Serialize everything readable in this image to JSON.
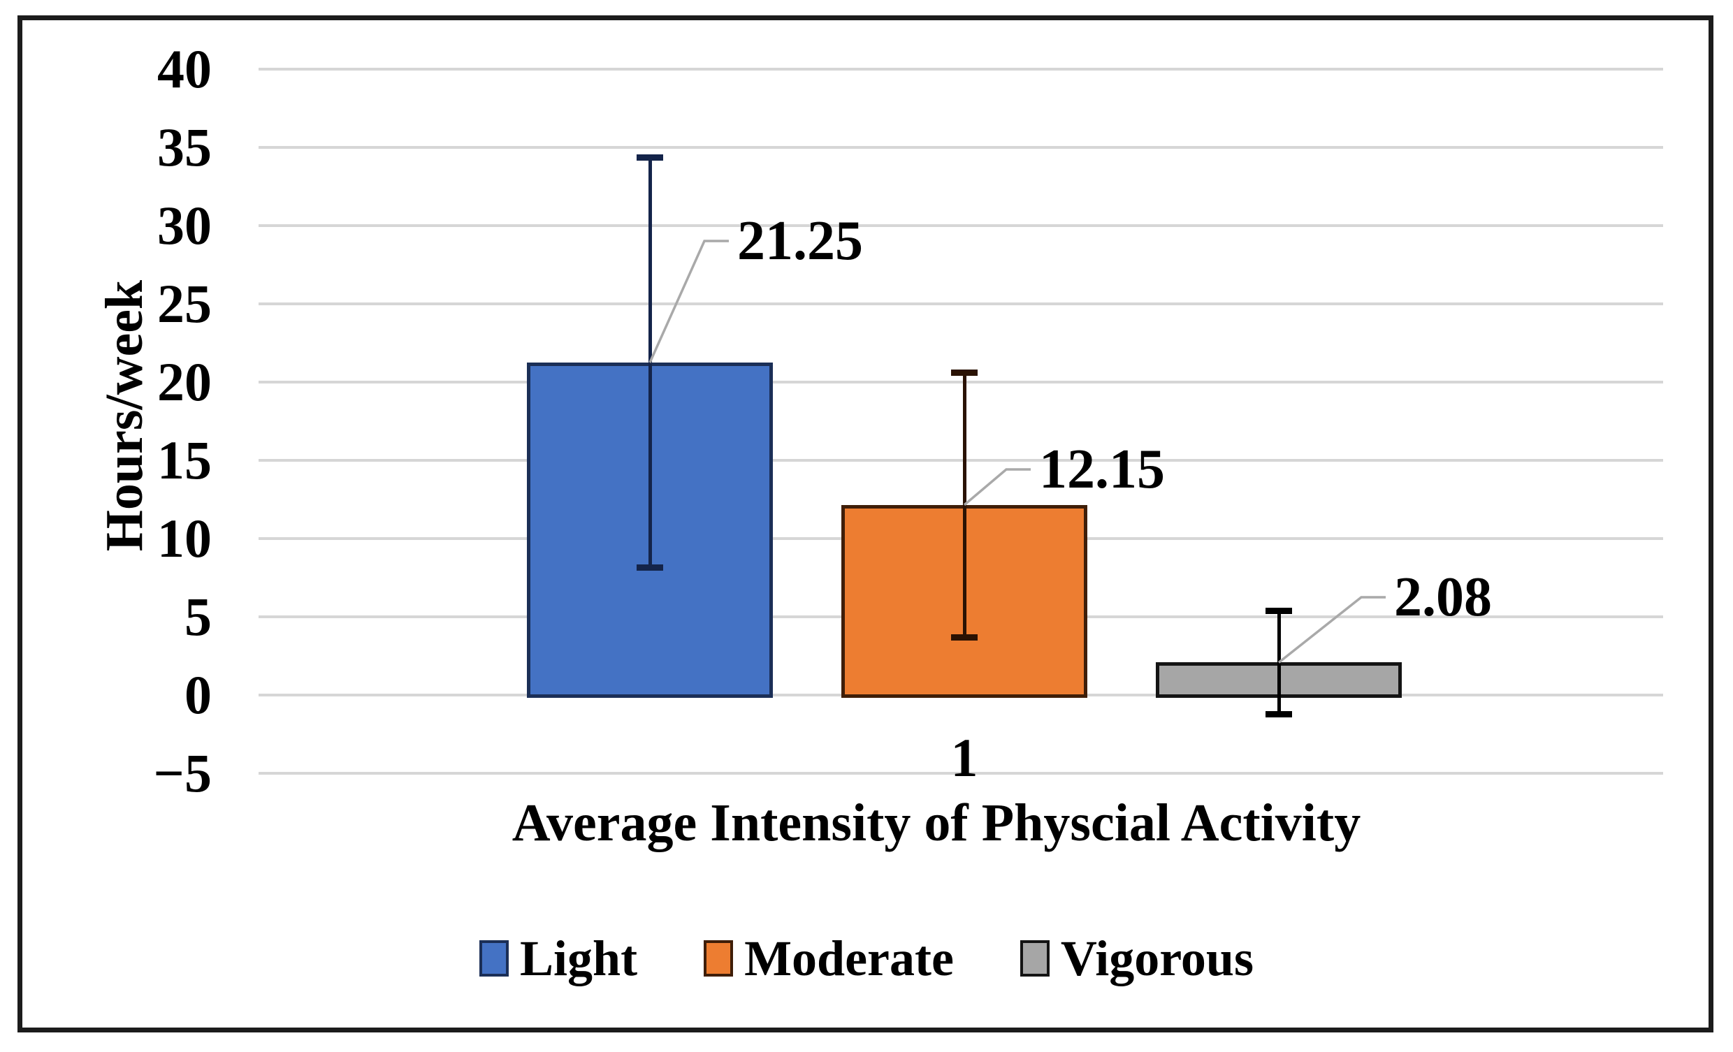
{
  "page": {
    "background": "#FFFFFF",
    "border_color": "#1C1C1C"
  },
  "chart_data": {
    "type": "bar",
    "title": "",
    "categories": [
      "1"
    ],
    "series": [
      {
        "name": "Light",
        "values": [
          21.25
        ],
        "data_label": "21.25",
        "color": "#4472C4",
        "border_color": "#1B2F57",
        "error_color": "#14244A",
        "error_bar": {
          "plus": 13.1,
          "minus": 13.1
        }
      },
      {
        "name": "Moderate",
        "values": [
          12.15
        ],
        "data_label": "12.15",
        "color": "#ED7D31",
        "border_color": "#3F1E08",
        "error_color": "#2A1203",
        "error_bar": {
          "plus": 8.45,
          "minus": 8.45
        }
      },
      {
        "name": "Vigorous",
        "values": [
          2.08
        ],
        "data_label": "2.08",
        "color": "#A6A6A6",
        "border_color": "#141414",
        "error_color": "#000000",
        "error_bar": {
          "plus": 3.3,
          "minus": 3.3
        }
      }
    ],
    "xlabel": "Average Intensity of Physcial Activity",
    "ylabel": "Hours/week",
    "ylim": [
      -5,
      40
    ],
    "ytick_step": 5,
    "yticks": [
      40,
      35,
      30,
      25,
      20,
      15,
      10,
      5,
      0,
      -5
    ],
    "grid": true,
    "gridline_color": "#D6D6D6",
    "leader_line_color": "#A9A9A9",
    "legend_position": "bottom"
  }
}
